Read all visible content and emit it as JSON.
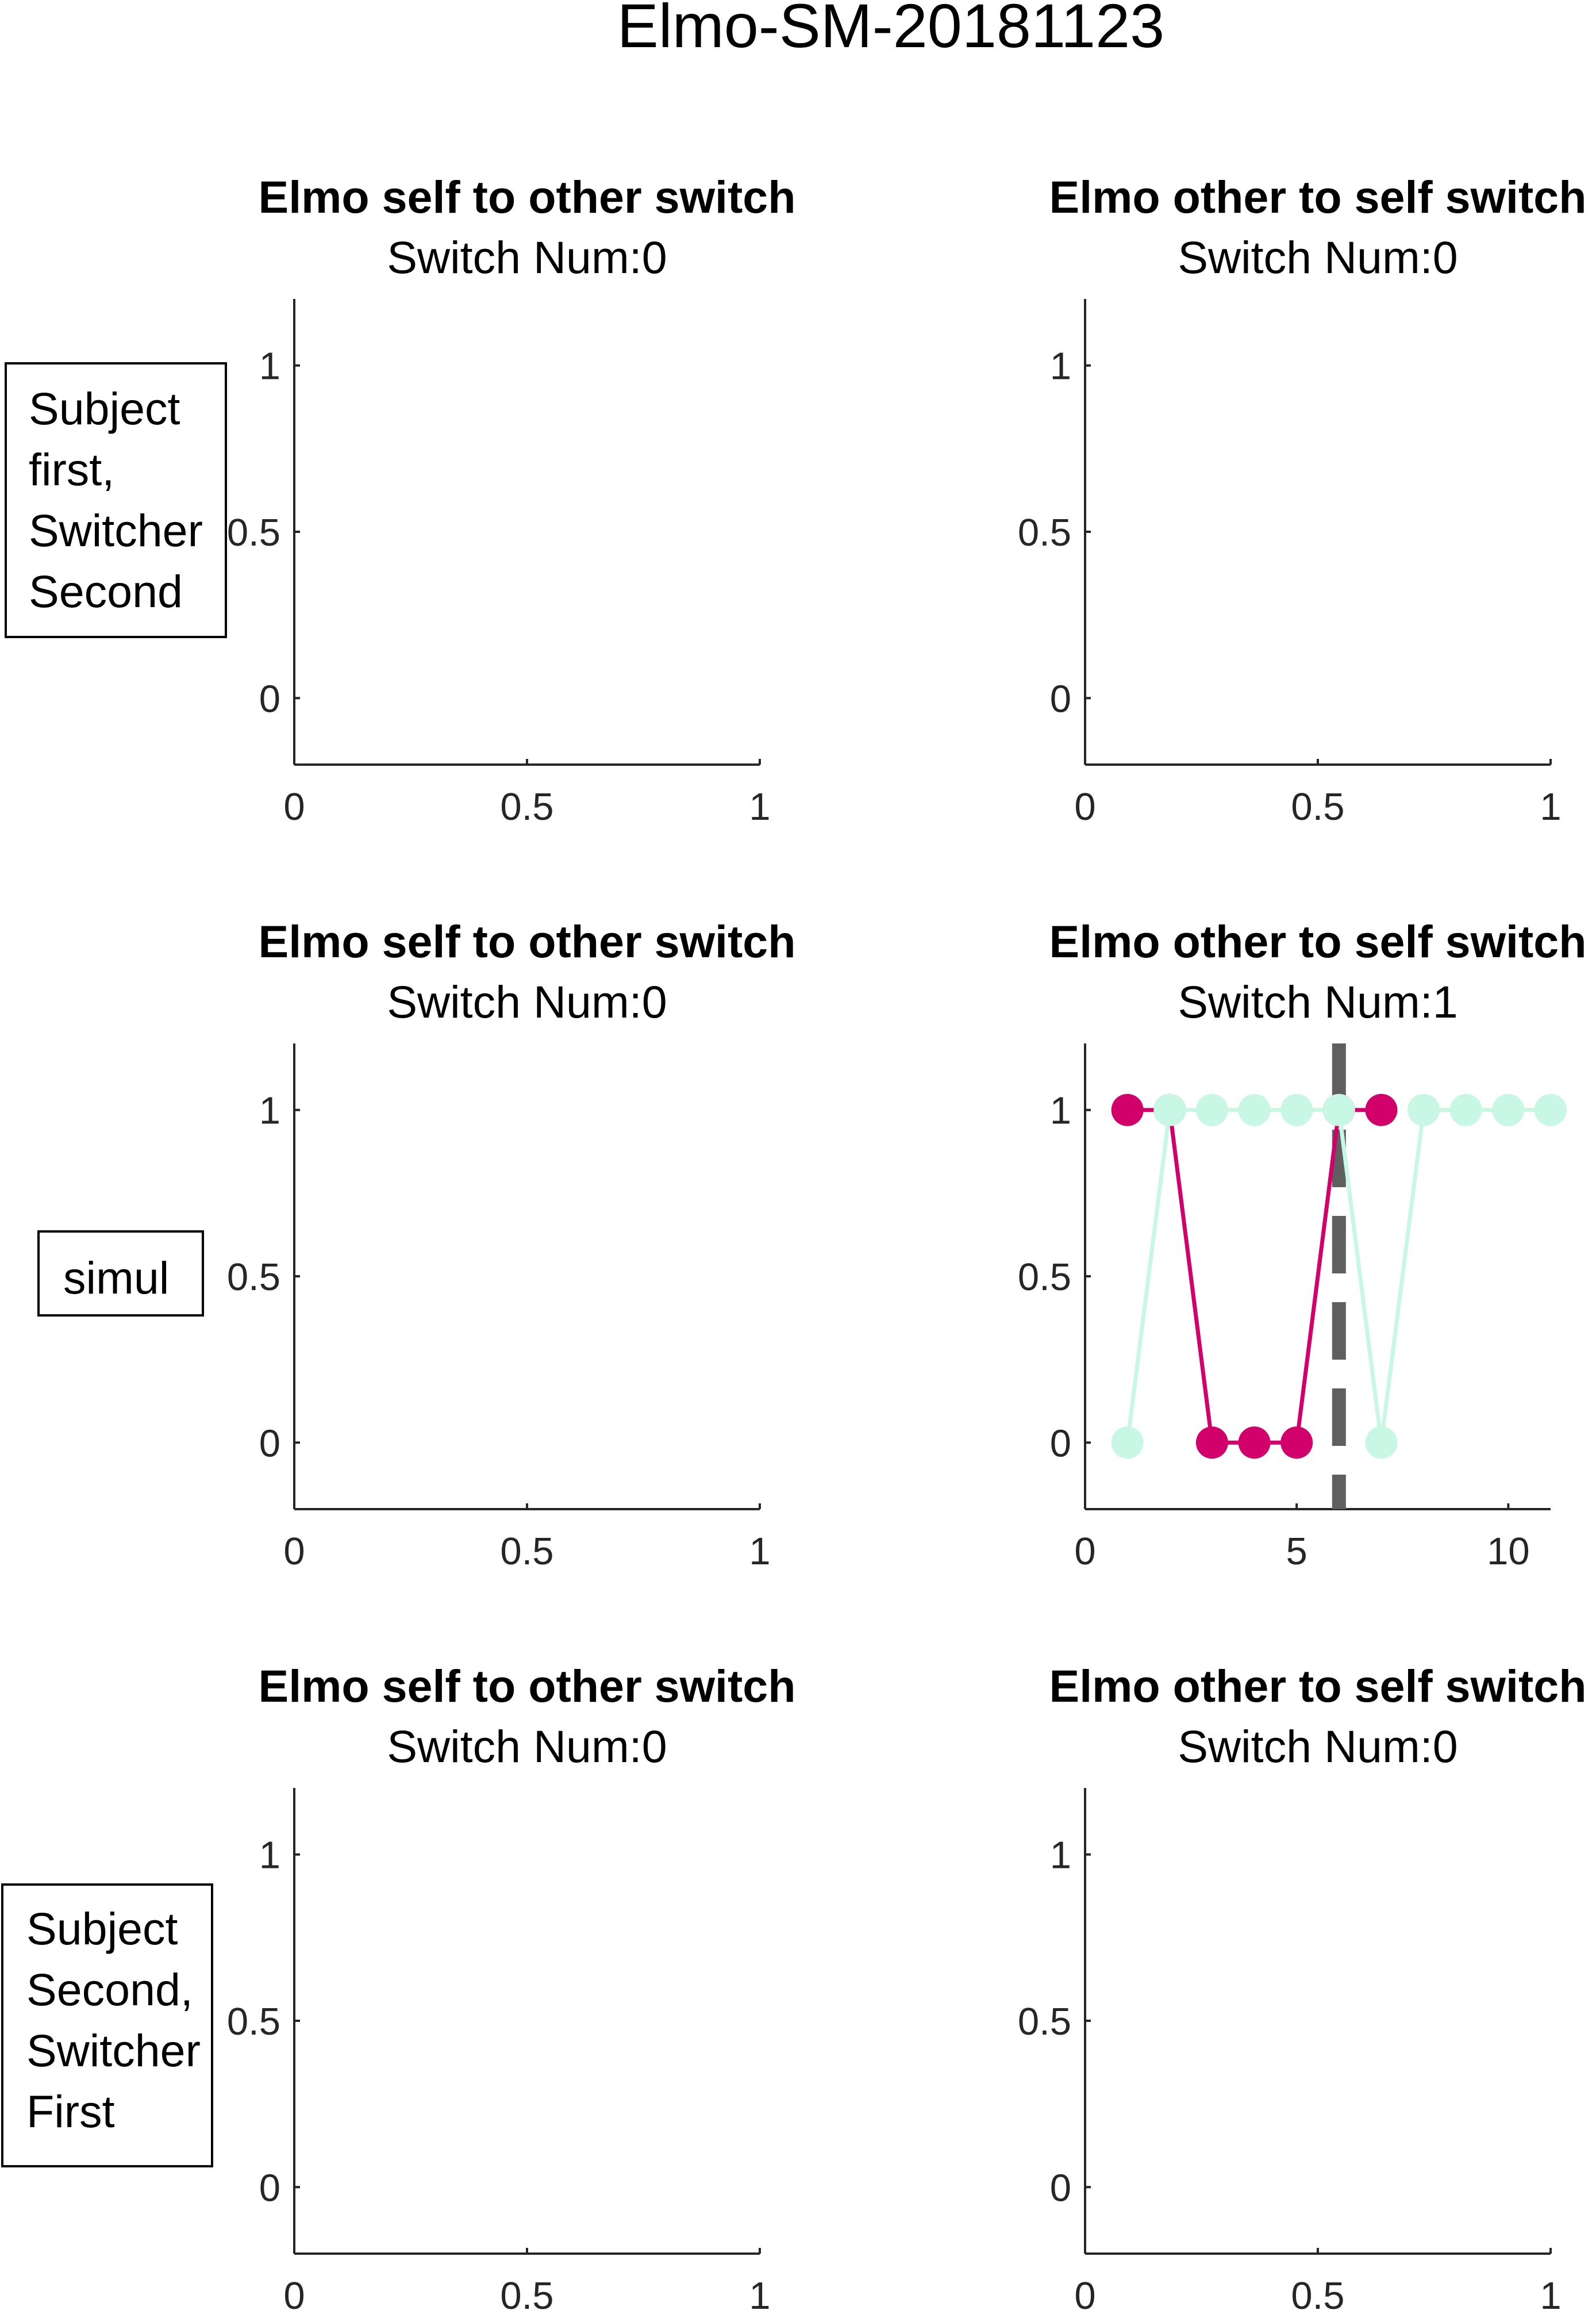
{
  "figure": {
    "title": "Elmo-SM-20181123",
    "row_labels": [
      [
        "Subject",
        "first,",
        "Switcher",
        "Second"
      ],
      [
        "simul"
      ],
      [
        "Subject",
        "Second,",
        "Switcher",
        "First"
      ]
    ]
  },
  "chart_data": [
    {
      "type": "line",
      "row": 0,
      "col": 0,
      "title": "Elmo self to other switch",
      "subtitle": "Switch Num:0",
      "xlim": [
        0,
        1
      ],
      "ylim": [
        -0.2,
        1.2
      ],
      "xticks": [
        0,
        0.5,
        1
      ],
      "yticks": [
        0,
        0.5,
        1
      ],
      "xtick_labels": [
        "0",
        "0.5",
        "1"
      ],
      "ytick_labels": [
        "0",
        "0.5",
        "1"
      ],
      "series": []
    },
    {
      "type": "line",
      "row": 0,
      "col": 1,
      "title": "Elmo other to self switch",
      "subtitle": "Switch Num:0",
      "xlim": [
        0,
        1
      ],
      "ylim": [
        -0.2,
        1.2
      ],
      "xticks": [
        0,
        0.5,
        1
      ],
      "yticks": [
        0,
        0.5,
        1
      ],
      "xtick_labels": [
        "0",
        "0.5",
        "1"
      ],
      "ytick_labels": [
        "0",
        "0.5",
        "1"
      ],
      "series": []
    },
    {
      "type": "line",
      "row": 1,
      "col": 0,
      "title": "Elmo self to other switch",
      "subtitle": "Switch Num:0",
      "xlim": [
        0,
        1
      ],
      "ylim": [
        -0.2,
        1.2
      ],
      "xticks": [
        0,
        0.5,
        1
      ],
      "yticks": [
        0,
        0.5,
        1
      ],
      "xtick_labels": [
        "0",
        "0.5",
        "1"
      ],
      "ytick_labels": [
        "0",
        "0.5",
        "1"
      ],
      "series": []
    },
    {
      "type": "line",
      "row": 1,
      "col": 1,
      "title": "Elmo other to self switch",
      "subtitle": "Switch Num:1",
      "xlim": [
        0,
        11
      ],
      "ylim": [
        -0.2,
        1.2
      ],
      "xticks": [
        0,
        5,
        10
      ],
      "yticks": [
        0,
        0.5,
        1
      ],
      "xtick_labels": [
        "0",
        "5",
        "10"
      ],
      "ytick_labels": [
        "0",
        "0.5",
        "1"
      ],
      "switch_x": 6,
      "series": [
        {
          "color": "#d1006b",
          "x": [
            1,
            2,
            3,
            4,
            5,
            6,
            7
          ],
          "y": [
            1,
            1,
            0,
            0,
            0,
            1,
            1
          ]
        },
        {
          "color": "#c8f7e6",
          "x": [
            1,
            2,
            3,
            4,
            5,
            6,
            7,
            8,
            9,
            10,
            11
          ],
          "y": [
            0,
            1,
            1,
            1,
            1,
            1,
            0,
            1,
            1,
            1,
            1
          ]
        }
      ]
    },
    {
      "type": "line",
      "row": 2,
      "col": 0,
      "title": "Elmo self to other switch",
      "subtitle": "Switch Num:0",
      "xlim": [
        0,
        1
      ],
      "ylim": [
        -0.2,
        1.2
      ],
      "xticks": [
        0,
        0.5,
        1
      ],
      "yticks": [
        0,
        0.5,
        1
      ],
      "xtick_labels": [
        "0",
        "0.5",
        "1"
      ],
      "ytick_labels": [
        "0",
        "0.5",
        "1"
      ],
      "series": []
    },
    {
      "type": "line",
      "row": 2,
      "col": 1,
      "title": "Elmo other to self switch",
      "subtitle": "Switch Num:0",
      "xlim": [
        0,
        1
      ],
      "ylim": [
        -0.2,
        1.2
      ],
      "xticks": [
        0,
        0.5,
        1
      ],
      "yticks": [
        0,
        0.5,
        1
      ],
      "xtick_labels": [
        "0",
        "0.5",
        "1"
      ],
      "ytick_labels": [
        "0",
        "0.5",
        "1"
      ],
      "series": []
    }
  ]
}
